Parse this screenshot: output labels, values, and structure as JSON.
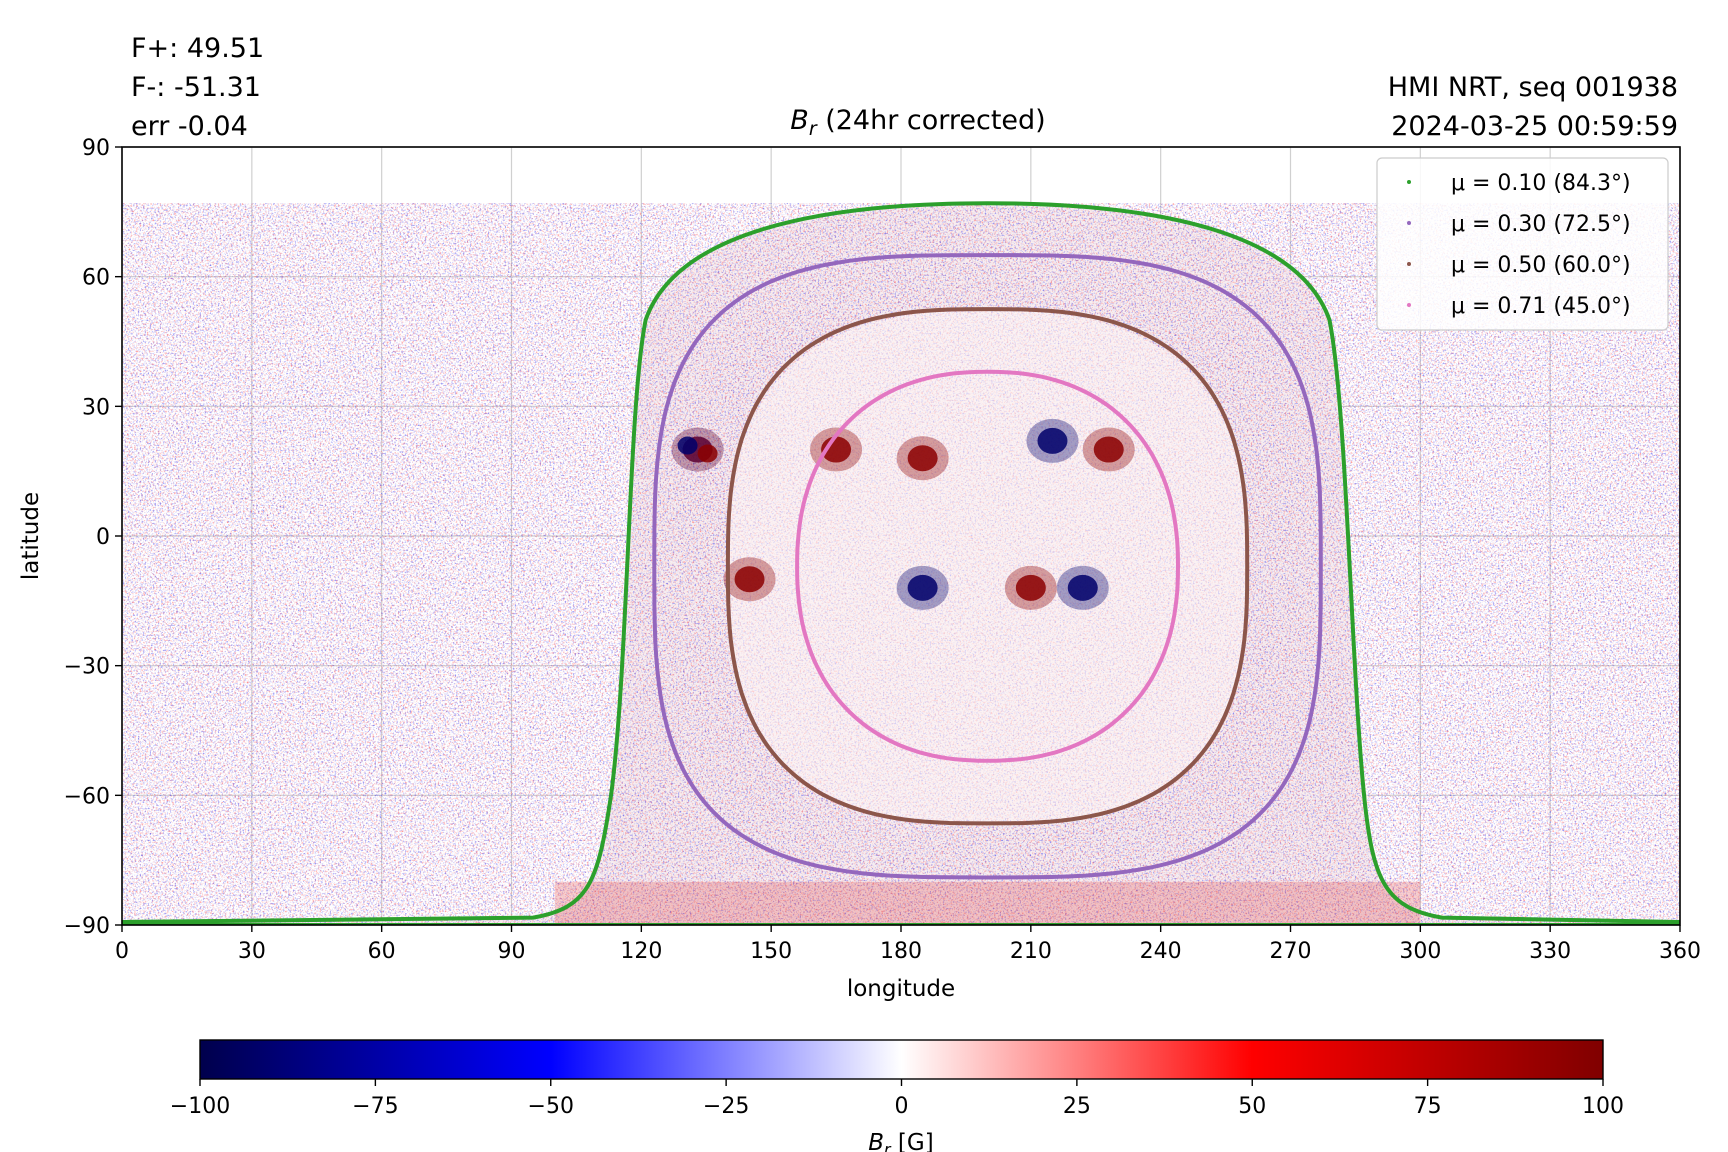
{
  "header": {
    "flux_pos": "F+: 49.51",
    "flux_neg": "F-: -51.31",
    "err": "err -0.04",
    "instrument": "HMI NRT, seq 001938",
    "datetime": "2024-03-25 00:59:59"
  },
  "chart_data": [
    {
      "type": "heatmap",
      "title": "B_r (24hr corrected)",
      "title_main": "B",
      "title_sub": "r",
      "title_rest": " (24hr corrected)",
      "xlabel": "longitude",
      "ylabel": "latitude",
      "xlim": [
        0,
        360
      ],
      "ylim": [
        -90,
        90
      ],
      "xticks": [
        0,
        30,
        60,
        90,
        120,
        150,
        180,
        210,
        240,
        270,
        300,
        330,
        360
      ],
      "xtick_labels": [
        "0",
        "30",
        "60",
        "90",
        "120",
        "150",
        "180",
        "210",
        "240",
        "270",
        "300",
        "330",
        "360"
      ],
      "yticks": [
        90,
        60,
        30,
        0,
        -30,
        -60,
        -90
      ],
      "ytick_labels": [
        "90",
        "60",
        "30",
        "0",
        "−30",
        "−60",
        "−90"
      ],
      "grid": true,
      "legend_position": "top-right",
      "disk_center": {
        "lon": 200,
        "lat": -7
      },
      "contours": [
        {
          "name": "μ = 0.10 (84.3°)",
          "mu": 0.1,
          "angle_deg": 84.3,
          "color": "#2ca02c"
        },
        {
          "name": "μ = 0.30 (72.5°)",
          "mu": 0.3,
          "angle_deg": 72.5,
          "color": "#9467bd"
        },
        {
          "name": "μ = 0.50 (60.0°)",
          "mu": 0.5,
          "angle_deg": 60.0,
          "color": "#8c564b"
        },
        {
          "name": "μ = 0.71 (45.0°)",
          "mu": 0.71,
          "angle_deg": 45.0,
          "color": "#e377c2"
        }
      ],
      "active_regions": [
        {
          "lon": 133,
          "lat": 20,
          "sign": "mixed"
        },
        {
          "lon": 165,
          "lat": 20,
          "sign": "positive"
        },
        {
          "lon": 185,
          "lat": 18,
          "sign": "positive"
        },
        {
          "lon": 215,
          "lat": 22,
          "sign": "negative"
        },
        {
          "lon": 228,
          "lat": 20,
          "sign": "positive"
        },
        {
          "lon": 185,
          "lat": -12,
          "sign": "negative"
        },
        {
          "lon": 210,
          "lat": -12,
          "sign": "positive"
        },
        {
          "lon": 222,
          "lat": -12,
          "sign": "negative"
        },
        {
          "lon": 145,
          "lat": -10,
          "sign": "positive"
        }
      ]
    },
    {
      "type": "colorbar",
      "label": "B_r [G]",
      "label_main": "B",
      "label_sub": "r",
      "label_rest": " [G]",
      "range": [
        -100,
        100
      ],
      "ticks": [
        -100,
        -75,
        -50,
        -25,
        0,
        25,
        50,
        75,
        100
      ],
      "tick_labels": [
        "−100",
        "−75",
        "−50",
        "−25",
        "0",
        "25",
        "50",
        "75",
        "100"
      ],
      "colormap": "seismic",
      "colors": [
        "#00004c",
        "#0000ff",
        "#ffffff",
        "#ff0000",
        "#800000"
      ]
    }
  ]
}
